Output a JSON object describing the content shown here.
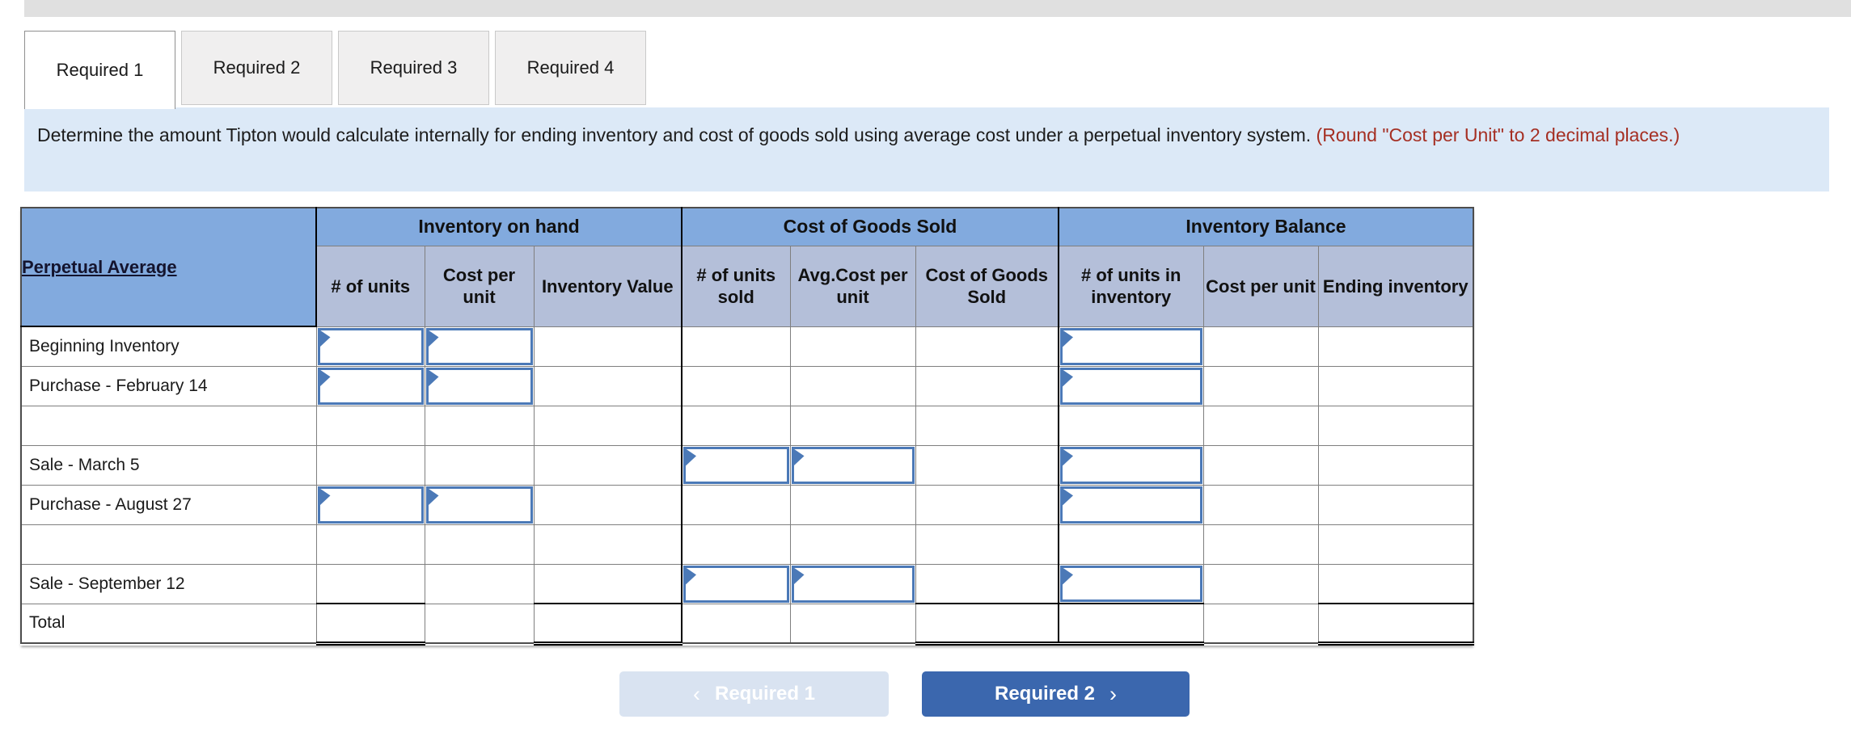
{
  "tabs": [
    "Required 1",
    "Required 2",
    "Required 3",
    "Required 4"
  ],
  "active_tab": "Required 1",
  "instruction": {
    "main": "Determine the amount Tipton would calculate internally for ending inventory and cost of goods sold using average cost under a perpetual inventory system.",
    "note": "(Round \"Cost per Unit\" to 2 decimal places.)"
  },
  "table": {
    "corner_label": "Perpetual Average",
    "groups": [
      "Inventory on hand",
      "Cost of Goods Sold",
      "Inventory Balance"
    ],
    "columns": [
      "# of units",
      "Cost per unit",
      "Inventory Value",
      "# of units sold",
      "Avg.Cost per unit",
      "Cost of Goods Sold",
      "# of units in inventory",
      "Cost per unit",
      "Ending inventory"
    ],
    "rows": [
      {
        "label": "Beginning Inventory"
      },
      {
        "label": "Purchase - February 14"
      },
      {
        "label": ""
      },
      {
        "label": "Sale - March 5"
      },
      {
        "label": "Purchase - August 27"
      },
      {
        "label": ""
      },
      {
        "label": "Sale - September 12"
      },
      {
        "label": "Total"
      }
    ],
    "input_values": ""
  },
  "footer": {
    "prev_icon": "‹",
    "prev_label": "Required 1",
    "next_label": "Required 2",
    "next_icon": "›"
  },
  "colors": {
    "header_group_bg": "#82aade",
    "header_sub_bg": "#b4bfd9",
    "input_border": "#4b79b7",
    "total_highlight": "#fbf9bb",
    "instruction_bg": "#dce9f7",
    "instruction_note_text": "#a52f23",
    "next_button_bg": "#3b67ae",
    "prev_button_bg": "#d9e3f1"
  }
}
